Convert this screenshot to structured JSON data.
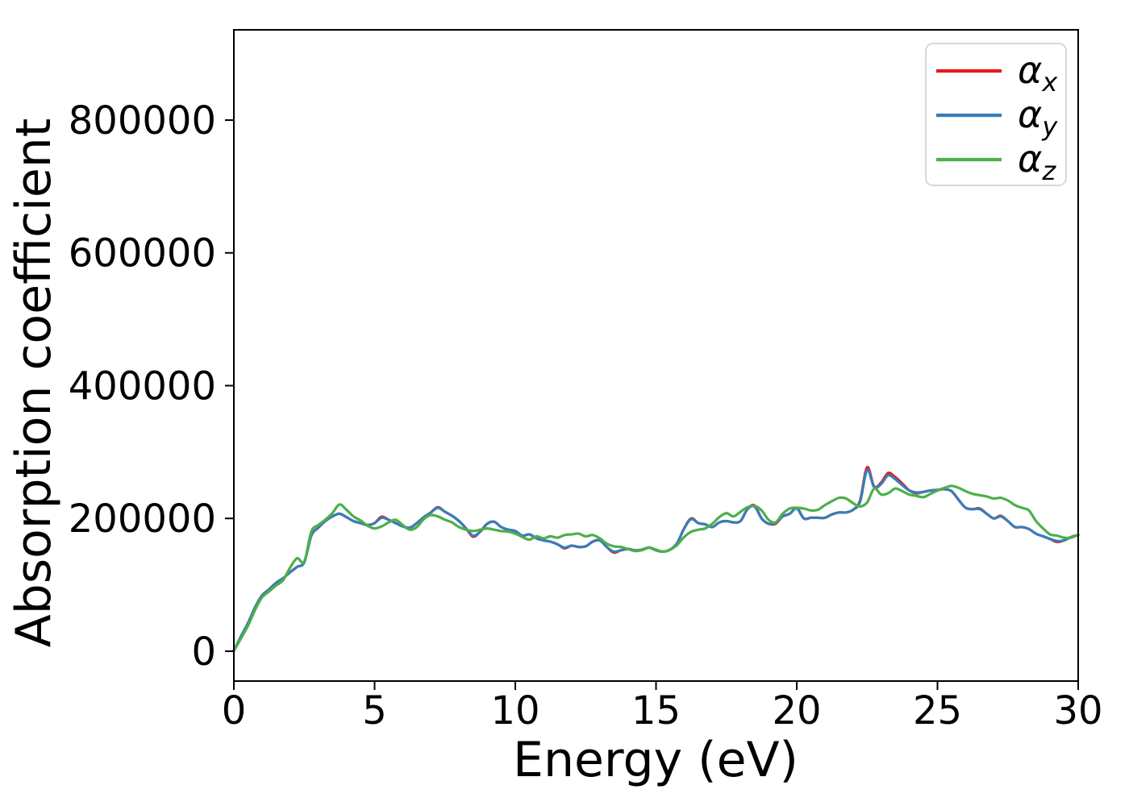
{
  "figure": {
    "background": "#ffffff",
    "spine_color": "#000000",
    "legend_border_color": "#cccccc"
  },
  "legend": {
    "entries": [
      {
        "base": "α",
        "sub": "x",
        "color": "#e41a1c"
      },
      {
        "base": "α",
        "sub": "y",
        "color": "#377eb8"
      },
      {
        "base": "α",
        "sub": "z",
        "color": "#4daf4a"
      }
    ]
  },
  "chart_data": {
    "type": "line",
    "title": "",
    "xlabel": "Energy (eV)",
    "ylabel": "Absorption coefficient",
    "xlim": [
      0,
      30
    ],
    "ylim": [
      -45000,
      936000
    ],
    "xticks": [
      0,
      5,
      10,
      15,
      20,
      25,
      30
    ],
    "yticks": [
      0,
      200000,
      400000,
      600000,
      800000
    ],
    "grid": false,
    "legend_position": "upper right",
    "x": [
      0,
      0.25,
      0.5,
      0.75,
      1,
      1.25,
      1.5,
      1.75,
      2,
      2.25,
      2.5,
      2.75,
      3,
      3.25,
      3.5,
      3.75,
      4,
      4.25,
      4.5,
      4.75,
      5,
      5.25,
      5.5,
      5.75,
      6,
      6.25,
      6.5,
      6.75,
      7,
      7.25,
      7.5,
      7.75,
      8,
      8.25,
      8.5,
      8.75,
      9,
      9.25,
      9.5,
      9.75,
      10,
      10.25,
      10.5,
      10.75,
      11,
      11.25,
      11.5,
      11.75,
      12,
      12.25,
      12.5,
      12.75,
      13,
      13.25,
      13.5,
      13.75,
      14,
      14.25,
      14.5,
      14.75,
      15,
      15.25,
      15.5,
      15.75,
      16,
      16.25,
      16.5,
      16.75,
      17,
      17.25,
      17.5,
      17.75,
      18,
      18.25,
      18.5,
      18.75,
      19,
      19.25,
      19.5,
      19.75,
      20,
      20.25,
      20.5,
      20.75,
      21,
      21.25,
      21.5,
      21.75,
      22,
      22.25,
      22.5,
      22.75,
      23,
      23.25,
      23.5,
      23.75,
      24,
      24.25,
      24.5,
      24.75,
      25,
      25.25,
      25.5,
      25.75,
      26,
      26.25,
      26.5,
      26.75,
      27,
      27.25,
      27.5,
      27.75,
      28,
      28.25,
      28.5,
      28.75,
      29,
      29.25,
      29.5,
      29.75,
      30
    ],
    "series": [
      {
        "name": "alpha_x",
        "color": "#e41a1c",
        "values": [
          1000,
          22000,
          42000,
          66000,
          84000,
          93000,
          103000,
          110000,
          119000,
          127000,
          134000,
          174000,
          186000,
          196000,
          203000,
          207000,
          202000,
          196000,
          193000,
          190000,
          193000,
          202500,
          198000,
          193000,
          188000,
          186000,
          193000,
          202000,
          209000,
          217000,
          210000,
          204000,
          196000,
          185000,
          172500,
          180000,
          192000,
          195000,
          187000,
          183000,
          181000,
          174000,
          176000,
          170000,
          167000,
          165000,
          161000,
          155000,
          159000,
          157000,
          158000,
          165000,
          167000,
          157000,
          148500,
          152000,
          154000,
          152000,
          153000,
          156000,
          152000,
          150000,
          153000,
          163000,
          185000,
          200000,
          193000,
          191000,
          187000,
          194000,
          196000,
          194000,
          196000,
          214000,
          219500,
          200000,
          192000,
          192000,
          203000,
          207000,
          216000,
          200000,
          201000,
          201000,
          201000,
          206000,
          209000,
          209000,
          213000,
          227000,
          277000,
          248000,
          254000,
          268500,
          262000,
          252500,
          242000,
          238000,
          240000,
          242000,
          243000,
          244000,
          241000,
          228000,
          216000,
          214000,
          215000,
          207000,
          200000,
          204000,
          196000,
          187000,
          187000,
          184000,
          177000,
          173000,
          169000,
          164500,
          167000,
          172000,
          175000
        ]
      },
      {
        "name": "alpha_y",
        "color": "#377eb8",
        "values": [
          1000,
          22000,
          42000,
          66000,
          84000,
          93000,
          103000,
          110000,
          119000,
          127000,
          134000,
          174000,
          186000,
          196000,
          203000,
          207000,
          202000,
          196000,
          193000,
          190000,
          193000,
          201000,
          198000,
          193000,
          188000,
          186000,
          193000,
          202000,
          209000,
          216000,
          210000,
          204000,
          196000,
          185000,
          174000,
          180000,
          192000,
          195000,
          187000,
          183000,
          181000,
          174000,
          176000,
          170000,
          167000,
          165000,
          161000,
          156000,
          159000,
          157000,
          158000,
          165000,
          167000,
          157000,
          150000,
          152000,
          154000,
          152000,
          153000,
          156000,
          152000,
          150000,
          153000,
          163000,
          185000,
          199000,
          193000,
          191000,
          187000,
          194000,
          196000,
          194000,
          196000,
          214000,
          218000,
          200000,
          192000,
          193000,
          203000,
          207000,
          215000,
          200000,
          201000,
          201000,
          201000,
          206000,
          209000,
          209000,
          213000,
          225000,
          273000,
          247000,
          252000,
          265000,
          259000,
          250000,
          242000,
          239000,
          240000,
          242000,
          243000,
          244000,
          241000,
          228000,
          216000,
          214000,
          214000,
          207000,
          200000,
          203000,
          196000,
          187000,
          187000,
          184000,
          177000,
          173000,
          169000,
          166000,
          167000,
          172000,
          175000
        ]
      },
      {
        "name": "alpha_z",
        "color": "#4daf4a",
        "values": [
          500,
          19000,
          38000,
          62000,
          81000,
          90000,
          99000,
          107000,
          126000,
          140000,
          135000,
          180000,
          190000,
          198000,
          208000,
          221000,
          213000,
          203000,
          197000,
          189000,
          185000,
          188000,
          194000,
          198000,
          190000,
          183000,
          187000,
          199000,
          205000,
          203000,
          198000,
          194000,
          187000,
          183000,
          181000,
          183000,
          185000,
          183000,
          181000,
          180000,
          177000,
          172000,
          168000,
          173000,
          170000,
          173000,
          171000,
          175000,
          176000,
          177000,
          173000,
          175000,
          170000,
          162000,
          158000,
          157000,
          154000,
          151000,
          152000,
          156000,
          153000,
          150000,
          153000,
          160000,
          172000,
          180000,
          183000,
          185000,
          192000,
          202000,
          208000,
          203000,
          210000,
          217000,
          219000,
          212000,
          198000,
          194000,
          207000,
          215000,
          216000,
          215000,
          212000,
          213000,
          220000,
          226000,
          231000,
          230000,
          223000,
          218000,
          224000,
          245000,
          236000,
          238000,
          245000,
          241000,
          236000,
          234000,
          232000,
          237000,
          242000,
          246000,
          249000,
          246000,
          241000,
          237000,
          235000,
          233000,
          230000,
          231000,
          227000,
          220000,
          216000,
          212000,
          196000,
          185000,
          176000,
          174000,
          171000,
          171000,
          175000
        ]
      }
    ]
  }
}
